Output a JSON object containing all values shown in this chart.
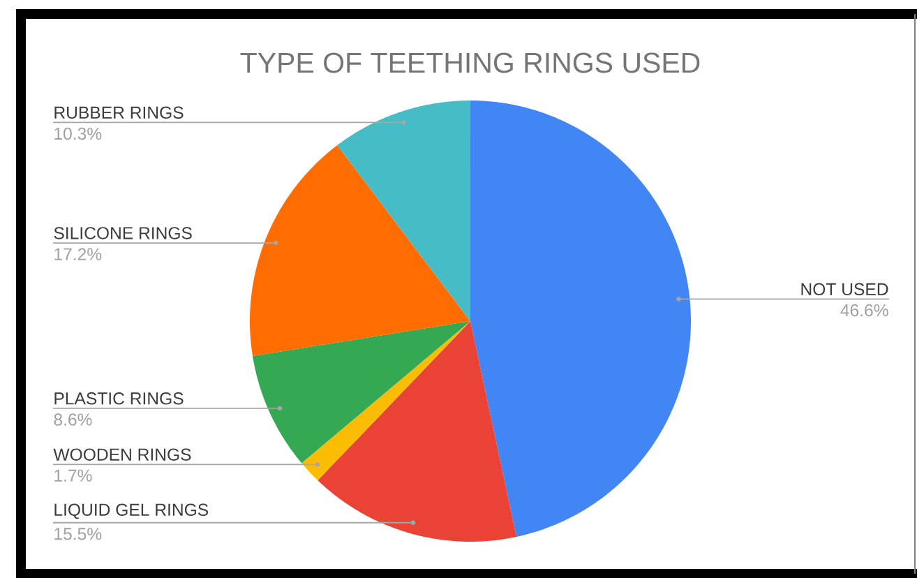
{
  "chart_data": {
    "type": "pie",
    "title": "TYPE OF TEETHING RINGS USED",
    "categories": [
      "NOT USED",
      "LIQUID GEL RINGS",
      "WOODEN RINGS",
      "PLASTIC RINGS",
      "SILICONE RINGS",
      "RUBBER RINGS"
    ],
    "values": [
      46.6,
      15.5,
      1.7,
      8.6,
      17.2,
      10.3
    ],
    "value_labels": [
      "46.6%",
      "15.5%",
      "1.7%",
      "8.6%",
      "17.2%",
      "10.3%"
    ],
    "colors": [
      "#4285f4",
      "#ea4335",
      "#fbbc04",
      "#34a853",
      "#ff6d01",
      "#46bdc6"
    ]
  }
}
